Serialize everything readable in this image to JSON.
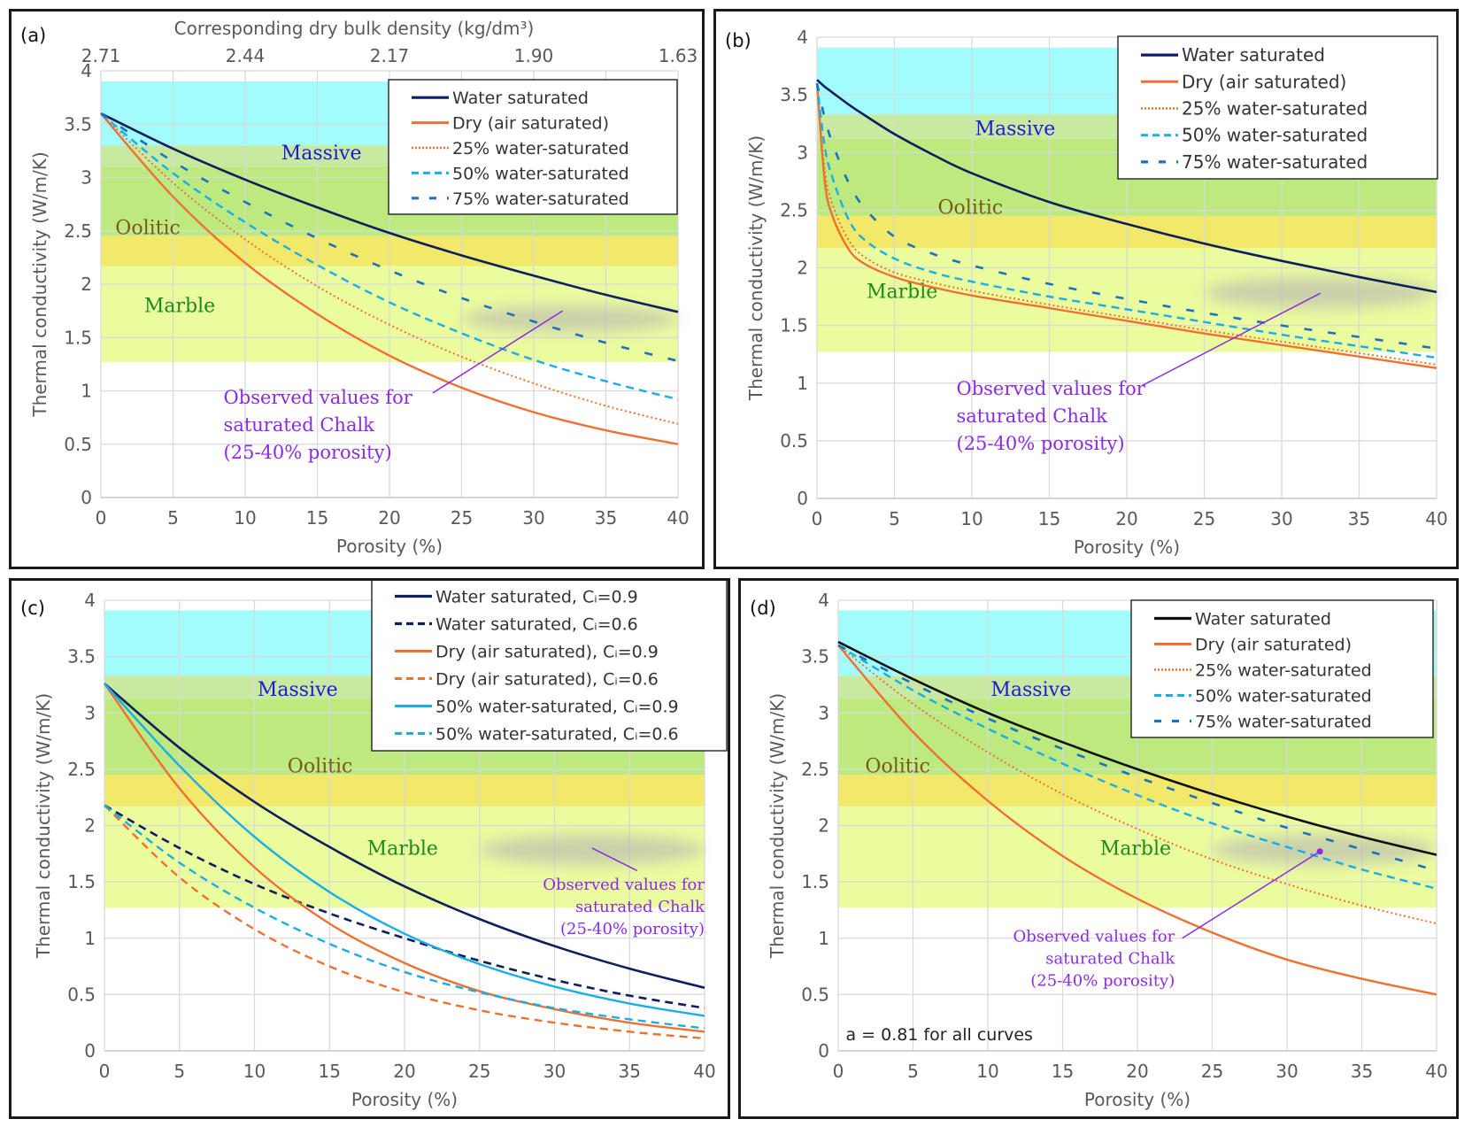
{
  "chart_data": [
    {
      "id": "a",
      "type": "line",
      "panel_label": "(a)",
      "title": "",
      "xlabel": "Porosity (%)",
      "ylabel": "Thermal conductivity (W/m/K)",
      "secondary_xlabel": "Corresponding dry bulk density (kg/dm³)",
      "secondary_xticks": [
        "2.71",
        "2.44",
        "2.17",
        "1.90",
        "1.63"
      ],
      "xlim": [
        0,
        40
      ],
      "ylim": [
        0,
        4
      ],
      "xticks": [
        "0",
        "5",
        "10",
        "15",
        "20",
        "25",
        "30",
        "35",
        "40"
      ],
      "yticks": [
        "0",
        "0.5",
        "1",
        "1.5",
        "2",
        "2.5",
        "3",
        "3.5",
        "4"
      ],
      "grid": true,
      "legend_position": "top-right",
      "x": [
        0,
        5,
        10,
        15,
        20,
        25,
        30,
        35,
        40
      ],
      "series": [
        {
          "name": "Water saturated",
          "style": "solid-navy",
          "values": [
            3.6,
            3.27,
            2.98,
            2.72,
            2.48,
            2.27,
            2.08,
            1.9,
            1.74
          ]
        },
        {
          "name": "Dry (air saturated)",
          "style": "solid-orange",
          "values": [
            3.6,
            2.82,
            2.2,
            1.72,
            1.33,
            1.03,
            0.8,
            0.63,
            0.5
          ]
        },
        {
          "name": "25% water-saturated",
          "style": "dotted-orange",
          "values": [
            3.6,
            2.95,
            2.42,
            1.98,
            1.62,
            1.32,
            1.07,
            0.86,
            0.69
          ]
        },
        {
          "name": "50% water-saturated",
          "style": "dash-lightblue",
          "values": [
            3.6,
            3.04,
            2.58,
            2.18,
            1.83,
            1.54,
            1.29,
            1.09,
            0.92
          ]
        },
        {
          "name": "75% water-saturated",
          "style": "longdash-blue",
          "values": [
            3.6,
            3.15,
            2.77,
            2.43,
            2.13,
            1.87,
            1.65,
            1.45,
            1.28
          ]
        }
      ],
      "bands": [
        {
          "name": "cyan",
          "y": [
            3.3,
            3.9
          ]
        },
        {
          "name": "lightgreen",
          "y": [
            3.1,
            3.3
          ]
        },
        {
          "name": "green",
          "y": [
            2.45,
            3.1
          ]
        },
        {
          "name": "yellow",
          "y": [
            2.17,
            2.45
          ]
        },
        {
          "name": "paleyellow",
          "y": [
            1.27,
            2.17
          ]
        }
      ],
      "band_labels": [
        {
          "text": "Massive",
          "x": 12.5,
          "y": 3.17,
          "color": "#1a1ad8"
        },
        {
          "text": "Oolitic",
          "x": 1.0,
          "y": 2.47,
          "color": "#7a5a10"
        },
        {
          "text": "Marble",
          "x": 3.0,
          "y": 1.74,
          "color": "#1d8a1d"
        }
      ],
      "observed_region": {
        "x": [
          25,
          40
        ],
        "y": [
          1.55,
          1.8
        ]
      },
      "annotation": {
        "lines": [
          "Observed values for",
          "saturated Chalk",
          "(25-40% porosity)"
        ],
        "text_x": 8.5,
        "text_y": 0.88,
        "pointer_from": [
          23,
          0.98
        ],
        "pointer_to": [
          32,
          1.75
        ],
        "align": "start"
      }
    },
    {
      "id": "b",
      "type": "line",
      "panel_label": "(b)",
      "title": "",
      "xlabel": "Porosity (%)",
      "ylabel": "Thermal conductivity (W/m/K)",
      "xlim": [
        0,
        40
      ],
      "ylim": [
        0,
        4
      ],
      "xticks": [
        "0",
        "5",
        "10",
        "15",
        "20",
        "25",
        "30",
        "35",
        "40"
      ],
      "yticks": [
        "0",
        "0.5",
        "1",
        "1.5",
        "2",
        "2.5",
        "3",
        "3.5",
        "4"
      ],
      "grid": true,
      "legend_position": "top-right",
      "x": [
        0,
        0.5,
        1,
        2,
        3,
        5,
        7.5,
        10,
        15,
        20,
        25,
        30,
        35,
        40
      ],
      "series": [
        {
          "name": "Water saturated",
          "style": "solid-navy",
          "values": [
            3.63,
            3.57,
            3.52,
            3.42,
            3.33,
            3.16,
            2.98,
            2.82,
            2.57,
            2.38,
            2.21,
            2.06,
            1.92,
            1.79
          ]
        },
        {
          "name": "Dry (air saturated)",
          "style": "solid-orange",
          "values": [
            3.6,
            2.75,
            2.45,
            2.17,
            2.04,
            1.92,
            1.83,
            1.76,
            1.65,
            1.54,
            1.43,
            1.33,
            1.23,
            1.13
          ]
        },
        {
          "name": "25% water-saturated",
          "style": "dotted-orange",
          "values": [
            3.6,
            2.85,
            2.55,
            2.25,
            2.1,
            1.96,
            1.87,
            1.8,
            1.68,
            1.57,
            1.46,
            1.36,
            1.26,
            1.16
          ]
        },
        {
          "name": "50% water-saturated",
          "style": "dash-lightblue",
          "values": [
            3.6,
            3.05,
            2.78,
            2.43,
            2.25,
            2.08,
            1.96,
            1.88,
            1.75,
            1.64,
            1.53,
            1.42,
            1.32,
            1.22
          ]
        },
        {
          "name": "75% water-saturated",
          "style": "longdash-blue",
          "values": [
            3.6,
            3.3,
            3.08,
            2.75,
            2.53,
            2.27,
            2.12,
            2.02,
            1.86,
            1.73,
            1.61,
            1.5,
            1.4,
            1.3
          ]
        }
      ],
      "bands": [
        {
          "name": "cyan",
          "y": [
            3.33,
            3.91
          ]
        },
        {
          "name": "lightgreen",
          "y": [
            3.12,
            3.33
          ]
        },
        {
          "name": "green",
          "y": [
            2.45,
            3.12
          ]
        },
        {
          "name": "yellow",
          "y": [
            2.17,
            2.45
          ]
        },
        {
          "name": "paleyellow",
          "y": [
            1.27,
            2.17
          ]
        }
      ],
      "band_labels": [
        {
          "text": "Massive",
          "x": 10.2,
          "y": 3.15,
          "color": "#1a1ad8"
        },
        {
          "text": "Oolitic",
          "x": 7.8,
          "y": 2.47,
          "color": "#7a5a10"
        },
        {
          "text": "Marble",
          "x": 3.2,
          "y": 1.74,
          "color": "#1d8a1d"
        }
      ],
      "observed_region": {
        "x": [
          25,
          40
        ],
        "y": [
          1.65,
          1.92
        ]
      },
      "annotation": {
        "lines": [
          "Observed values for",
          "saturated Chalk",
          "(25-40% porosity)"
        ],
        "text_x": 9.0,
        "text_y": 0.9,
        "pointer_from": [
          21,
          0.98
        ],
        "pointer_to": [
          32.5,
          1.78
        ],
        "align": "start"
      }
    },
    {
      "id": "c",
      "type": "line",
      "panel_label": "(c)",
      "title": "",
      "xlabel": "Porosity (%)",
      "ylabel": "Thermal conductivity (W/m/K)",
      "xlim": [
        0,
        40
      ],
      "ylim": [
        0,
        4
      ],
      "xticks": [
        "0",
        "5",
        "10",
        "15",
        "20",
        "25",
        "30",
        "35",
        "40"
      ],
      "yticks": [
        "0",
        "0.5",
        "1",
        "1.5",
        "2",
        "2.5",
        "3",
        "3.5",
        "4"
      ],
      "grid": true,
      "legend_position": "top-right",
      "x": [
        0,
        5,
        10,
        15,
        20,
        25,
        30,
        35,
        40
      ],
      "series": [
        {
          "name": "Water saturated, Cᵢ=0.9",
          "style": "solid-navy",
          "values": [
            3.26,
            2.69,
            2.21,
            1.81,
            1.46,
            1.17,
            0.93,
            0.73,
            0.56
          ]
        },
        {
          "name": "Water saturated, Cᵢ=0.6",
          "style": "dash-navy",
          "values": [
            2.18,
            1.8,
            1.48,
            1.22,
            1.0,
            0.8,
            0.63,
            0.49,
            0.38
          ]
        },
        {
          "name": "Dry (air saturated), Cᵢ=0.9",
          "style": "solid-orange",
          "values": [
            3.26,
            2.33,
            1.63,
            1.13,
            0.78,
            0.53,
            0.37,
            0.25,
            0.17
          ]
        },
        {
          "name": "Dry (air saturated), Cᵢ=0.6",
          "style": "dash-orange",
          "values": [
            2.18,
            1.54,
            1.08,
            0.75,
            0.52,
            0.36,
            0.25,
            0.17,
            0.11
          ]
        },
        {
          "name": "50% water-saturated, Cᵢ=0.9",
          "style": "solid-lightblue",
          "values": [
            3.26,
            2.53,
            1.9,
            1.41,
            1.04,
            0.77,
            0.57,
            0.42,
            0.31
          ]
        },
        {
          "name": "50% water-saturated, Cᵢ=0.6",
          "style": "dash-lightblue",
          "values": [
            2.18,
            1.67,
            1.27,
            0.95,
            0.7,
            0.52,
            0.38,
            0.28,
            0.2
          ]
        }
      ],
      "bands": [
        {
          "name": "cyan",
          "y": [
            3.33,
            3.91
          ]
        },
        {
          "name": "lightgreen",
          "y": [
            3.12,
            3.33
          ]
        },
        {
          "name": "green",
          "y": [
            2.45,
            3.12
          ]
        },
        {
          "name": "yellow",
          "y": [
            2.17,
            2.45
          ]
        },
        {
          "name": "paleyellow",
          "y": [
            1.27,
            2.17
          ]
        }
      ],
      "band_labels": [
        {
          "text": "Massive",
          "x": 10.2,
          "y": 3.15,
          "color": "#1a1ad8"
        },
        {
          "text": "Oolitic",
          "x": 12.2,
          "y": 2.47,
          "color": "#7a5a10"
        },
        {
          "text": "Marble",
          "x": 17.5,
          "y": 1.74,
          "color": "#1d8a1d"
        }
      ],
      "observed_region": {
        "x": [
          25,
          40
        ],
        "y": [
          1.65,
          1.92
        ]
      },
      "annotation": {
        "lines": [
          "Observed values for",
          "saturated Chalk",
          "(25-40% porosity)"
        ],
        "text_x": 40.0,
        "text_y": 1.43,
        "pointer_from": [
          35.5,
          1.6
        ],
        "pointer_to": [
          32.5,
          1.8
        ],
        "align": "end"
      }
    },
    {
      "id": "d",
      "type": "line",
      "panel_label": "(d)",
      "title": "",
      "xlabel": "Porosity (%)",
      "ylabel": "Thermal conductivity (W/m/K)",
      "xlim": [
        0,
        40
      ],
      "ylim": [
        0,
        4
      ],
      "xticks": [
        "0",
        "5",
        "10",
        "15",
        "20",
        "25",
        "30",
        "35",
        "40"
      ],
      "yticks": [
        "0",
        "0.5",
        "1",
        "1.5",
        "2",
        "2.5",
        "3",
        "3.5",
        "4"
      ],
      "grid": true,
      "legend_position": "top-right",
      "note": "a = 0.81 for all curves",
      "x": [
        0,
        5,
        10,
        15,
        20,
        25,
        30,
        35,
        40
      ],
      "series": [
        {
          "name": "Water saturated",
          "style": "solid-black",
          "values": [
            3.63,
            3.3,
            3.0,
            2.74,
            2.5,
            2.28,
            2.08,
            1.9,
            1.74
          ]
        },
        {
          "name": "Dry (air saturated)",
          "style": "solid-orange",
          "values": [
            3.6,
            2.83,
            2.22,
            1.73,
            1.35,
            1.05,
            0.81,
            0.64,
            0.5
          ]
        },
        {
          "name": "25% water-saturated",
          "style": "dotted-orange",
          "values": [
            3.6,
            3.08,
            2.65,
            2.28,
            1.97,
            1.7,
            1.48,
            1.29,
            1.13
          ]
        },
        {
          "name": "50% water-saturated",
          "style": "dash-lightblue",
          "values": [
            3.6,
            3.2,
            2.86,
            2.55,
            2.27,
            2.02,
            1.81,
            1.61,
            1.44
          ]
        },
        {
          "name": "75% water-saturated",
          "style": "longdash-blue",
          "values": [
            3.6,
            3.26,
            2.95,
            2.68,
            2.43,
            2.2,
            1.98,
            1.79,
            1.6
          ]
        }
      ],
      "bands": [
        {
          "name": "cyan",
          "y": [
            3.33,
            3.91
          ]
        },
        {
          "name": "lightgreen",
          "y": [
            3.12,
            3.33
          ]
        },
        {
          "name": "green",
          "y": [
            2.45,
            3.12
          ]
        },
        {
          "name": "yellow",
          "y": [
            2.17,
            2.45
          ]
        },
        {
          "name": "paleyellow",
          "y": [
            1.27,
            2.17
          ]
        }
      ],
      "band_labels": [
        {
          "text": "Massive",
          "x": 10.2,
          "y": 3.15,
          "color": "#1a1ad8"
        },
        {
          "text": "Oolitic",
          "x": 1.8,
          "y": 2.47,
          "color": "#7a5a10"
        },
        {
          "text": "Marble",
          "x": 17.5,
          "y": 1.74,
          "color": "#1d8a1d"
        }
      ],
      "observed_region": {
        "x": [
          25,
          40
        ],
        "y": [
          1.65,
          1.92
        ]
      },
      "observed_point": [
        32.2,
        1.77
      ],
      "annotation": {
        "lines": [
          "Observed values for",
          "saturated Chalk",
          "(25-40% porosity)"
        ],
        "text_x": 22.5,
        "text_y": 0.97,
        "pointer_from": [
          23,
          1.0
        ],
        "pointer_to": [
          32.2,
          1.77
        ],
        "align": "end"
      }
    }
  ],
  "colors": {
    "navy": "#0d1f5c",
    "black": "#101010",
    "orange": "#f07030",
    "lightblue": "#19aee8",
    "blue": "#1b72c0",
    "annotation": "#8a2be2",
    "cyan": "#a2fcfc",
    "lightgreen": "#c8eaa0",
    "green": "#bdea7e",
    "yellow": "#f2e86a",
    "paleyellow": "#ebfc9e",
    "observed": "#b4b4b4",
    "grid": "#d9d9d9",
    "axis_text": "#595959"
  }
}
